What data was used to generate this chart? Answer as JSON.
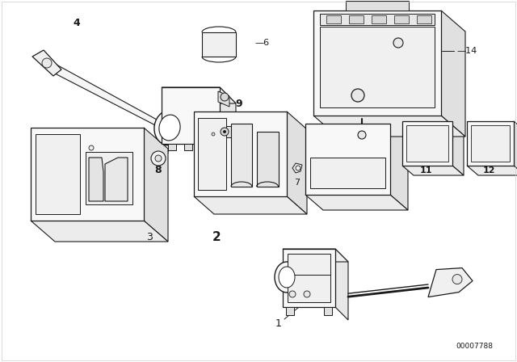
{
  "background_color": "#ffffff",
  "line_color": "#1a1a1a",
  "diagram_code": "00007788",
  "figsize": [
    6.4,
    4.48
  ],
  "dpi": 100
}
